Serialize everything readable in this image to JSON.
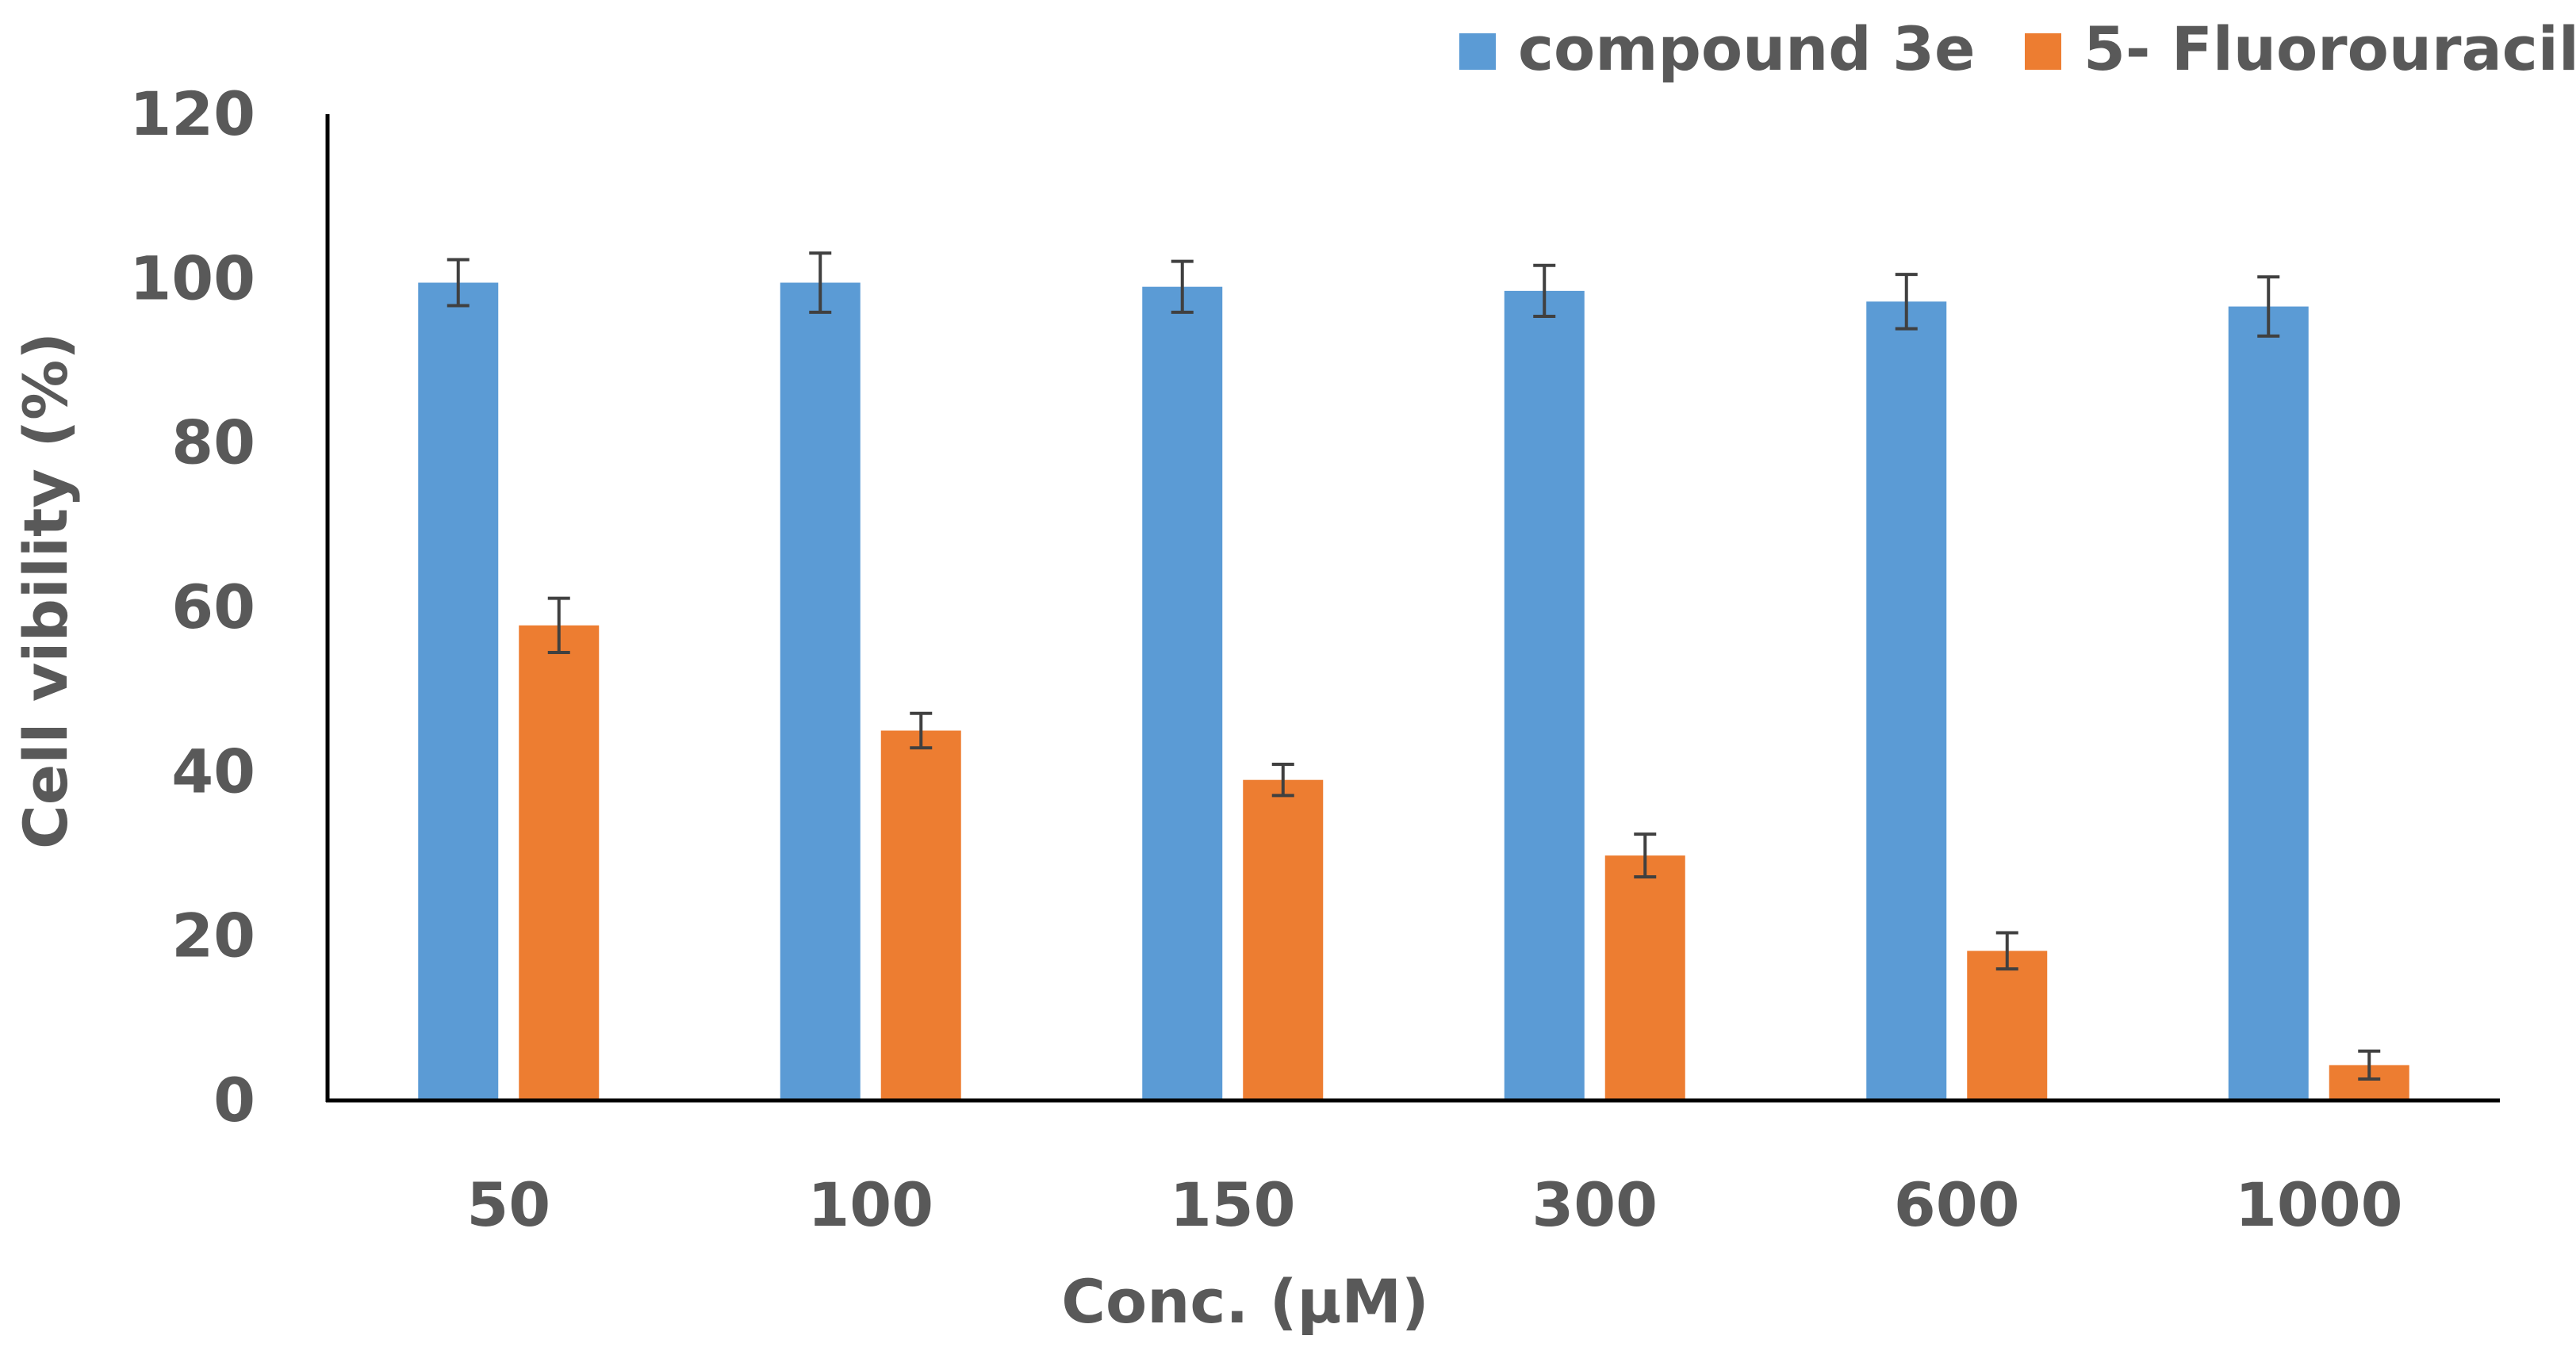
{
  "chart_data": {
    "type": "bar",
    "title": "",
    "xlabel": "Conc. (µM)",
    "ylabel": "Cell vibility (%)",
    "categories": [
      "50",
      "100",
      "150",
      "300",
      "600",
      "1000"
    ],
    "ylim": [
      0,
      120
    ],
    "yticks": [
      0,
      20,
      40,
      60,
      80,
      100,
      120
    ],
    "grid": false,
    "legend_position": "top-right",
    "series": [
      {
        "name": "compound 3e",
        "color": "#5B9BD5",
        "values": [
          99.5,
          99.5,
          99,
          98.5,
          97.2,
          96.6
        ],
        "errors": [
          2.8,
          3.6,
          3.1,
          3.1,
          3.3,
          3.6
        ]
      },
      {
        "name": "5- Fluorouracil",
        "color": "#ED7D31",
        "values": [
          57.8,
          45,
          39,
          29.8,
          18.2,
          4.3
        ],
        "errors": [
          3.3,
          2.1,
          1.9,
          2.6,
          2.2,
          1.7
        ]
      }
    ],
    "error_bar_color": "#404040",
    "axis_color": "#000000"
  }
}
